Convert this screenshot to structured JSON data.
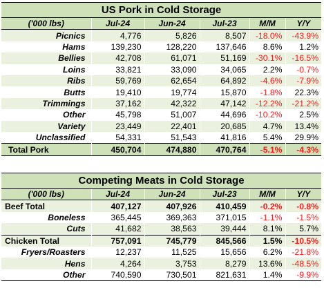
{
  "pork": {
    "title": "US Pork in Cold Storage",
    "headers": [
      "('000 lbs)",
      "Jul-24",
      "Jun-24",
      "Jul-23",
      "M/M",
      "Y/Y"
    ],
    "rows": [
      {
        "label": "Picnics",
        "jul24": "4,776",
        "jun24": "5,826",
        "jul23": "8,507",
        "mm": "-18.0%",
        "yy": "-43.9%"
      },
      {
        "label": "Hams",
        "jul24": "139,230",
        "jun24": "128,220",
        "jul23": "137,646",
        "mm": "8.6%",
        "yy": "1.2%"
      },
      {
        "label": "Bellies",
        "jul24": "42,708",
        "jun24": "61,071",
        "jul23": "51,169",
        "mm": "-30.1%",
        "yy": "-16.5%"
      },
      {
        "label": "Loins",
        "jul24": "33,821",
        "jun24": "33,090",
        "jul23": "34,065",
        "mm": "2.2%",
        "yy": "-0.7%"
      },
      {
        "label": "Ribs",
        "jul24": "59,769",
        "jun24": "62,654",
        "jul23": "64,892",
        "mm": "-4.6%",
        "yy": "-7.9%"
      },
      {
        "label": "Butts",
        "jul24": "19,410",
        "jun24": "19,774",
        "jul23": "15,870",
        "mm": "-1.8%",
        "yy": "22.3%"
      },
      {
        "label": "Trimmings",
        "jul24": "37,162",
        "jun24": "42,322",
        "jul23": "47,142",
        "mm": "-12.2%",
        "yy": "-21.2%"
      },
      {
        "label": "Other",
        "jul24": "45,798",
        "jun24": "51,007",
        "jul23": "44,696",
        "mm": "-10.2%",
        "yy": "2.5%"
      },
      {
        "label": "Variety",
        "jul24": "23,449",
        "jun24": "22,401",
        "jul23": "20,685",
        "mm": "4.7%",
        "yy": "13.4%"
      },
      {
        "label": "Unclassified",
        "jul24": "54,331",
        "jun24": "51,543",
        "jul23": "41,816",
        "mm": "5.4%",
        "yy": "29.9%"
      }
    ],
    "total": {
      "label": "Total Pork",
      "jul24": "450,704",
      "jun24": "474,880",
      "jul23": "470,764",
      "mm": "-5.1%",
      "yy": "-4.3%"
    }
  },
  "meats": {
    "title": "Competing Meats in Cold Storage",
    "headers": [
      "('000 lbs)",
      "Jul-24",
      "Jun-24",
      "Jul-23",
      "M/M",
      "Y/Y"
    ],
    "beef": {
      "label": "Beef Total",
      "jul24": "407,127",
      "jun24": "407,926",
      "jul23": "410,459",
      "mm": "-0.2%",
      "yy": "-0.8%",
      "subs": [
        {
          "label": "Boneless",
          "jul24": "365,445",
          "jun24": "369,363",
          "jul23": "371,015",
          "mm": "-1.1%",
          "yy": "-1.5%"
        },
        {
          "label": "Cuts",
          "jul24": "41,682",
          "jun24": "38,563",
          "jul23": "39,444",
          "mm": "8.1%",
          "yy": "5.7%"
        }
      ]
    },
    "chicken": {
      "label": "Chicken Total",
      "jul24": "757,091",
      "jun24": "745,779",
      "jul23": "845,566",
      "mm": "1.5%",
      "yy": "-10.5%",
      "subs": [
        {
          "label": "Fryers/Roasters",
          "jul24": "12,237",
          "jun24": "11,525",
          "jul23": "15,656",
          "mm": "6.2%",
          "yy": "-21.8%"
        },
        {
          "label": "Hens",
          "jul24": "4,264",
          "jun24": "3,753",
          "jul23": "8,279",
          "mm": "13.6%",
          "yy": "-48.5%"
        },
        {
          "label": "Other",
          "jul24": "740,590",
          "jun24": "730,501",
          "jul23": "821,631",
          "mm": "1.4%",
          "yy": "-9.9%"
        }
      ]
    }
  },
  "colors": {
    "header_green": "#cfe1b8",
    "band_green": "#eaf2df",
    "negative_red": "#ff1a1a"
  }
}
